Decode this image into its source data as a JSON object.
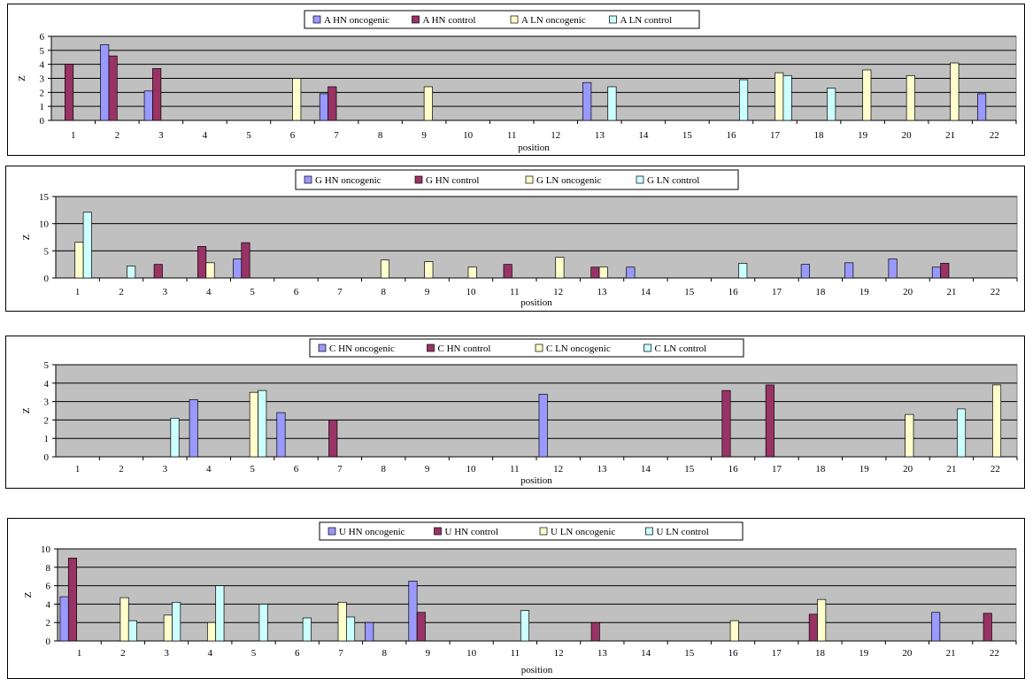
{
  "colors": {
    "plot_bg": "#C0C0C0",
    "grid": "#000000",
    "hn_oncogenic": "#9999FF",
    "hn_control": "#993366",
    "ln_oncogenic": "#FFFFCC",
    "ln_control": "#CCFFFF"
  },
  "chart_data": [
    {
      "type": "bar",
      "xlabel": "position",
      "ylabel": "Z",
      "ylim": [
        0,
        6
      ],
      "yticks": [
        0,
        1,
        2,
        3,
        4,
        5,
        6
      ],
      "categories": [
        "1",
        "2",
        "3",
        "4",
        "5",
        "6",
        "7",
        "8",
        "9",
        "10",
        "11",
        "12",
        "13",
        "14",
        "15",
        "16",
        "17",
        "18",
        "19",
        "20",
        "21",
        "22"
      ],
      "grid": true,
      "legend_position": "top-center",
      "series": [
        {
          "name": "A HN oncogenic",
          "values": [
            0,
            5.4,
            2.1,
            0,
            0,
            0,
            1.9,
            0,
            0,
            0,
            0,
            0,
            2.7,
            0,
            0,
            0,
            0,
            0,
            0,
            0,
            0,
            1.9
          ]
        },
        {
          "name": "A HN control",
          "values": [
            4.0,
            4.6,
            3.7,
            0,
            0,
            0,
            2.4,
            0,
            0,
            0,
            0,
            0,
            0,
            0,
            0,
            0,
            0,
            0,
            0,
            0,
            0,
            0
          ]
        },
        {
          "name": "A LN oncogenic",
          "values": [
            0,
            0,
            0,
            0,
            0,
            3.0,
            0,
            0,
            2.4,
            0,
            0,
            0,
            0,
            0,
            0,
            0,
            3.4,
            0,
            3.6,
            3.2,
            4.1,
            0
          ]
        },
        {
          "name": "A LN control",
          "values": [
            0,
            0,
            0,
            0,
            0,
            0,
            0,
            0,
            0,
            0,
            0,
            0,
            2.4,
            0,
            0,
            2.9,
            3.2,
            2.3,
            0,
            0,
            0,
            0
          ]
        }
      ]
    },
    {
      "type": "bar",
      "xlabel": "position",
      "ylabel": "Z",
      "ylim": [
        0,
        15
      ],
      "yticks": [
        0,
        5,
        10,
        15
      ],
      "categories": [
        "1",
        "2",
        "3",
        "4",
        "5",
        "6",
        "7",
        "8",
        "9",
        "10",
        "11",
        "12",
        "13",
        "14",
        "15",
        "16",
        "17",
        "18",
        "19",
        "20",
        "21",
        "22"
      ],
      "grid": true,
      "legend_position": "top-center",
      "series": [
        {
          "name": "G HN oncogenic",
          "values": [
            0,
            0,
            0,
            0,
            3.5,
            0,
            0,
            0,
            0,
            0,
            0,
            0,
            0,
            2.0,
            0,
            0,
            0,
            2.5,
            2.8,
            3.5,
            2.0,
            0
          ]
        },
        {
          "name": "G HN control",
          "values": [
            0,
            0,
            2.5,
            5.8,
            6.5,
            0,
            0,
            0,
            0,
            0,
            2.5,
            0,
            2.0,
            0,
            0,
            0,
            0,
            0,
            0,
            0,
            2.7,
            0
          ]
        },
        {
          "name": "G LN oncogenic",
          "values": [
            6.6,
            0,
            0,
            2.8,
            0,
            0,
            0,
            3.3,
            3.0,
            2.0,
            0,
            3.8,
            2.0,
            0,
            0,
            0,
            0,
            0,
            0,
            0,
            0,
            0
          ]
        },
        {
          "name": "G LN control",
          "values": [
            12.1,
            2.2,
            0,
            0,
            0,
            0,
            0,
            0,
            0,
            0,
            0,
            0,
            0,
            0,
            0,
            2.7,
            0,
            0,
            0,
            0,
            0,
            0
          ]
        }
      ]
    },
    {
      "type": "bar",
      "xlabel": "position",
      "ylabel": "Z",
      "ylim": [
        0,
        5
      ],
      "yticks": [
        0,
        1,
        2,
        3,
        4,
        5
      ],
      "categories": [
        "1",
        "2",
        "3",
        "4",
        "5",
        "6",
        "7",
        "8",
        "9",
        "10",
        "11",
        "12",
        "13",
        "14",
        "15",
        "16",
        "17",
        "18",
        "19",
        "20",
        "21",
        "22"
      ],
      "grid": true,
      "legend_position": "top-center",
      "series": [
        {
          "name": "C HN oncogenic",
          "values": [
            0,
            0,
            0,
            3.1,
            0,
            2.4,
            0,
            0,
            0,
            0,
            0,
            3.4,
            0,
            0,
            0,
            0,
            0,
            0,
            0,
            0,
            0,
            0
          ]
        },
        {
          "name": "C HN control",
          "values": [
            0,
            0,
            0,
            0,
            0,
            0,
            2.0,
            0,
            0,
            0,
            0,
            0,
            0,
            0,
            0,
            3.6,
            3.9,
            0,
            0,
            0,
            0,
            0
          ]
        },
        {
          "name": "C LN oncogenic",
          "values": [
            0,
            0,
            0,
            0,
            3.5,
            0,
            0,
            0,
            0,
            0,
            0,
            0,
            0,
            0,
            0,
            0,
            0,
            0,
            0,
            2.3,
            0,
            3.9
          ]
        },
        {
          "name": "C LN control",
          "values": [
            0,
            0,
            2.1,
            0,
            3.6,
            0,
            0,
            0,
            0,
            0,
            0,
            0,
            0,
            0,
            0,
            0,
            0,
            0,
            0,
            0,
            2.6,
            0
          ]
        }
      ]
    },
    {
      "type": "bar",
      "xlabel": "position",
      "ylabel": "Z",
      "ylim": [
        0,
        10
      ],
      "yticks": [
        0,
        2,
        4,
        6,
        8,
        10
      ],
      "categories": [
        "1",
        "2",
        "3",
        "4",
        "5",
        "6",
        "7",
        "8",
        "9",
        "10",
        "11",
        "12",
        "13",
        "14",
        "15",
        "16",
        "17",
        "18",
        "19",
        "20",
        "21",
        "22"
      ],
      "grid": true,
      "legend_position": "top-center",
      "series": [
        {
          "name": "U HN oncogenic",
          "values": [
            4.8,
            0,
            0,
            0,
            0,
            0,
            0,
            2.0,
            6.5,
            0,
            0,
            0,
            0,
            0,
            0,
            0,
            0,
            0,
            0,
            0,
            3.1,
            0
          ]
        },
        {
          "name": "U HN control",
          "values": [
            9.0,
            0,
            0,
            0,
            0,
            0,
            0,
            0,
            3.1,
            0,
            0,
            0,
            2.0,
            0,
            0,
            0,
            0,
            2.9,
            0,
            0,
            0,
            3.0
          ]
        },
        {
          "name": "U LN oncogenic",
          "values": [
            0,
            4.7,
            2.8,
            2.0,
            0,
            0,
            4.2,
            0,
            0,
            0,
            0,
            0,
            0,
            0,
            0,
            2.2,
            0,
            4.5,
            0,
            0,
            0,
            0
          ]
        },
        {
          "name": "U LN control",
          "values": [
            0,
            2.2,
            4.2,
            6.0,
            4.0,
            2.5,
            2.6,
            0,
            0,
            0,
            3.3,
            0,
            0,
            0,
            0,
            0,
            0,
            0,
            0,
            0,
            0,
            0
          ]
        }
      ]
    }
  ]
}
